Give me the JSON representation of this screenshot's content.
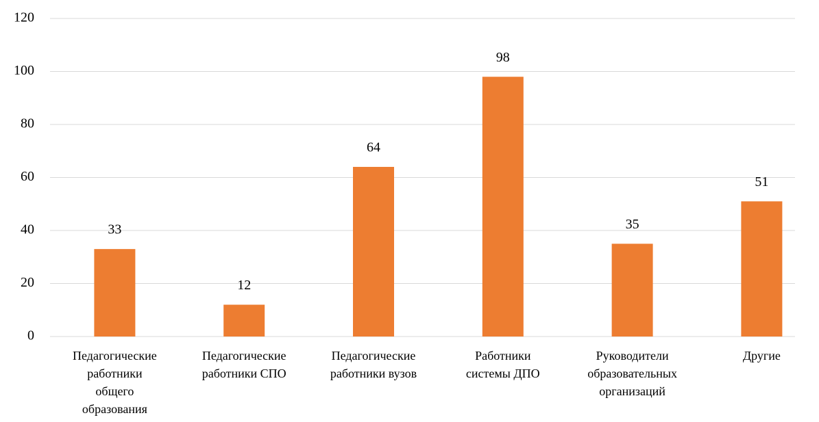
{
  "chart_data": {
    "type": "bar",
    "categories": [
      "Педагогические работники общего образования",
      "Педагогические работники СПО",
      "Педагогические работники вузов",
      "Работники системы ДПО",
      "Руководители образовательных организаций",
      "Другие"
    ],
    "values": [
      33,
      12,
      64,
      98,
      35,
      51
    ],
    "color": "#ed7d31",
    "ylim": [
      0,
      120
    ],
    "yticks": [
      0,
      20,
      40,
      60,
      80,
      100,
      120
    ],
    "grid": true
  }
}
